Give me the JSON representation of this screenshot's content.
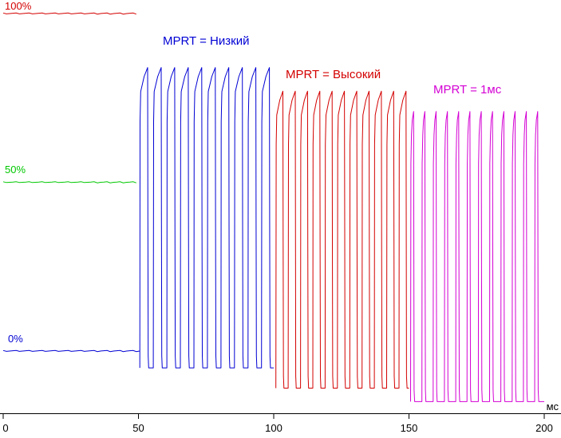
{
  "chart_data": {
    "type": "line",
    "title": "",
    "xlabel": "мс",
    "x_range": [
      0,
      200
    ],
    "background_color": "#ffffff",
    "axis_color": "#000000",
    "grid": false,
    "legend_position": "inline-annotations",
    "x_ticks": [
      {
        "value": 0,
        "label": "0"
      },
      {
        "value": 50,
        "label": "50"
      },
      {
        "value": 100,
        "label": "100"
      },
      {
        "value": 150,
        "label": "150"
      },
      {
        "value": 200,
        "label": "200"
      }
    ],
    "reference_levels": [
      {
        "label": "100%",
        "level_pct": 100,
        "t_start": 0,
        "t_end": 49.5,
        "color": "#d40000"
      },
      {
        "label": "50%",
        "level_pct": 50,
        "t_start": 0,
        "t_end": 49.5,
        "color": "#00c800"
      },
      {
        "label": "0%",
        "level_pct": 0,
        "t_start": 0,
        "t_end": 50.5,
        "color": "#0000d4"
      }
    ],
    "series": [
      {
        "name": "MPRT = Низкий",
        "color": "#0000d4",
        "t_start": 50.5,
        "t_end": 100,
        "period_ms": 5.0,
        "pulse_width_ms": 2.9,
        "peak_pct": 84,
        "base_pct": -5,
        "pulse_count": 10
      },
      {
        "name": "MPRT = Высокий",
        "color": "#d40000",
        "t_start": 100.8,
        "t_end": 150,
        "period_ms": 4.55,
        "pulse_width_ms": 2.6,
        "peak_pct": 77,
        "base_pct": -11,
        "pulse_count": 11
      },
      {
        "name": "MPRT = 1мс",
        "color": "#d400d4",
        "t_start": 150.6,
        "t_end": 200,
        "period_ms": 4.17,
        "pulse_width_ms": 1.1,
        "peak_pct": 71,
        "base_pct": -15,
        "pulse_count": 12
      }
    ]
  }
}
